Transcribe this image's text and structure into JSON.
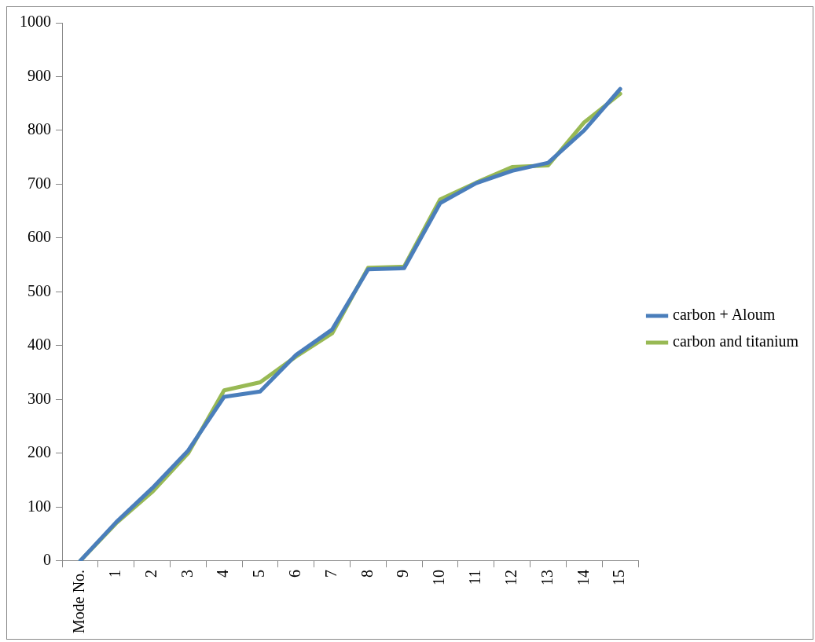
{
  "chart_data": {
    "type": "line",
    "categories": [
      "Mode No.",
      "1",
      "2",
      "3",
      "4",
      "5",
      "6",
      "7",
      "8",
      "9",
      "10",
      "11",
      "12",
      "13",
      "14",
      "15"
    ],
    "series": [
      {
        "name": "carbon + Aloum",
        "color": "#4a7ebb",
        "values": [
          0,
          72,
          135,
          205,
          305,
          315,
          383,
          430,
          542,
          544,
          665,
          702,
          725,
          740,
          800,
          877
        ]
      },
      {
        "name": "carbon and titanium",
        "color": "#98b954",
        "values": [
          0,
          70,
          128,
          200,
          317,
          332,
          380,
          423,
          545,
          547,
          672,
          703,
          732,
          735,
          815,
          868
        ]
      }
    ],
    "ylim": [
      0,
      1000
    ],
    "yticks": [
      0,
      100,
      200,
      300,
      400,
      500,
      600,
      700,
      800,
      900,
      1000
    ],
    "grid": false,
    "legend": "right",
    "marker": "none",
    "line_style": "solid"
  }
}
